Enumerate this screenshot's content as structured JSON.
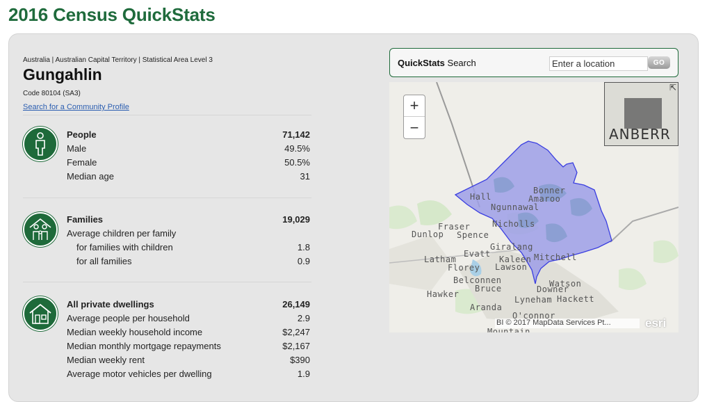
{
  "page": {
    "title": "2016 Census QuickStats"
  },
  "profile": {
    "breadcrumb": "Australia | Australian Capital Territory | Statistical Area Level 3",
    "name": "Gungahlin",
    "code": "Code 80104 (SA3)",
    "community_link": "Search for a Community Profile"
  },
  "stats": {
    "people": {
      "icon": "person-icon",
      "rows": [
        {
          "label": "People",
          "value": "71,142"
        },
        {
          "label": "Male",
          "value": "49.5%"
        },
        {
          "label": "Female",
          "value": "50.5%"
        },
        {
          "label": "Median age",
          "value": "31"
        }
      ]
    },
    "families": {
      "icon": "family-icon",
      "rows": [
        {
          "label": "Families",
          "value": "19,029"
        },
        {
          "label": "Average children per family",
          "value": ""
        },
        {
          "label": "for families with children",
          "value": "1.8"
        },
        {
          "label": "for all families",
          "value": "0.9"
        }
      ]
    },
    "dwellings": {
      "icon": "house-icon",
      "rows": [
        {
          "label": "All private dwellings",
          "value": "26,149"
        },
        {
          "label": "Average people per household",
          "value": "2.9"
        },
        {
          "label": "Median weekly household income",
          "value": "$2,247"
        },
        {
          "label": "Median monthly mortgage repayments",
          "value": "$2,167"
        },
        {
          "label": "Median weekly rent",
          "value": "$390"
        },
        {
          "label": "Average motor vehicles per dwelling",
          "value": "1.9"
        }
      ]
    }
  },
  "search": {
    "title_bold": "QuickStats",
    "title_rest": " Search",
    "placeholder": "Enter a location",
    "button": "GO"
  },
  "map": {
    "zoom_in": "+",
    "zoom_out": "−",
    "overview_label": "ANBERR",
    "attribution": "BI © 2017 MapData Services Pt...",
    "logo": "esri",
    "places": [
      "Hall",
      "Bonner",
      "Amaroo",
      "Ngunnawal",
      "Fraser",
      "Dunlop",
      "Spence",
      "Nicholls",
      "Evatt",
      "Giralang",
      "Latham",
      "Florey",
      "Kaleen",
      "Lawson",
      "Mitchell",
      "Belconnen",
      "Bruce",
      "Watson",
      "Downer",
      "Hawker",
      "Lyneham",
      "Hackett",
      "Aranda",
      "O'connor",
      "Mountain"
    ],
    "colors": {
      "region_fill": "#9d9fe8",
      "region_stroke": "#3a3ee0"
    }
  }
}
